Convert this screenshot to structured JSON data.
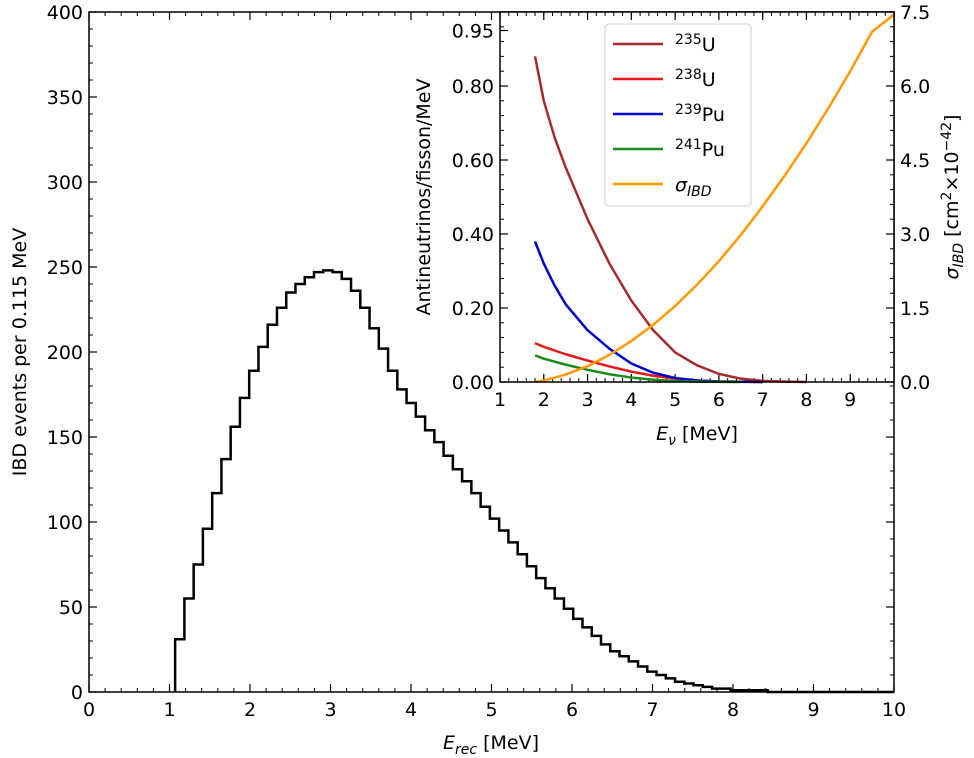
{
  "chart_data": [
    {
      "type": "line",
      "name": "main",
      "title": "",
      "xlabel": "E_rec [MeV]",
      "xlabel_parts": {
        "var": "E",
        "sub": "rec",
        "unit": " [MeV]"
      },
      "ylabel": "IBD events per 0.115 MeV",
      "xlim": [
        0,
        10
      ],
      "ylim": [
        0,
        400
      ],
      "xticks": [
        0,
        1,
        2,
        3,
        4,
        5,
        6,
        7,
        8,
        9,
        10
      ],
      "yticks": [
        0,
        50,
        100,
        150,
        200,
        250,
        300,
        350,
        400
      ],
      "bin_width": 0.115,
      "hist_start": 1.07,
      "hist_values": [
        31,
        55,
        75,
        96,
        117,
        137,
        156,
        173,
        189,
        203,
        216,
        226,
        235,
        240,
        244,
        247,
        248,
        247,
        243,
        236,
        226,
        214,
        202,
        189,
        178,
        170,
        162,
        154,
        147,
        139,
        131,
        124,
        117,
        109,
        102,
        95,
        88,
        81,
        74,
        67,
        61,
        55,
        49,
        43,
        38,
        33,
        28,
        24,
        21,
        18,
        15,
        12,
        10,
        8,
        6,
        5,
        4,
        3,
        2,
        2,
        1,
        1,
        1,
        1,
        0
      ]
    },
    {
      "type": "line",
      "name": "inset",
      "xlabel": "E_ν [MeV]",
      "xlabel_parts": {
        "var": "E",
        "sub": "ν",
        "unit": " [MeV]"
      },
      "ylabel": "Antineutrinos/fisson/MeV",
      "y2label": "σ_IBD [cm²×10⁻⁴²]",
      "xlim": [
        1,
        10
      ],
      "ylim": [
        0,
        1.0
      ],
      "y2lim": [
        0,
        7.5
      ],
      "xticks": [
        1,
        2,
        3,
        4,
        5,
        6,
        7,
        8,
        9
      ],
      "yticks": [
        0.0,
        0.2,
        0.4,
        0.6,
        0.8,
        0.95
      ],
      "ytick_labels": [
        "0.00",
        "0.20",
        "0.40",
        "0.60",
        "0.80",
        "0.95"
      ],
      "y2ticks": [
        0.0,
        1.5,
        3.0,
        4.5,
        6.0,
        7.5
      ],
      "y2tick_labels": [
        "0.0",
        "1.5",
        "3.0",
        "4.5",
        "6.0",
        "7.5"
      ],
      "legend_position": "top-center",
      "series": [
        {
          "name": "235U",
          "iso": "235",
          "el": "U",
          "color": "#a52a2a",
          "axis": "left",
          "x": [
            1.8,
            2.0,
            2.25,
            2.5,
            2.75,
            3.0,
            3.5,
            4.0,
            4.5,
            5.0,
            5.5,
            6.0,
            6.5,
            7.0,
            7.5,
            8.0
          ],
          "y": [
            0.88,
            0.76,
            0.66,
            0.58,
            0.51,
            0.44,
            0.32,
            0.22,
            0.14,
            0.08,
            0.045,
            0.022,
            0.009,
            0.003,
            0.001,
            0.0
          ]
        },
        {
          "name": "238U",
          "iso": "238",
          "el": "U",
          "color": "#e31a1c",
          "axis": "left",
          "x": [
            1.8,
            2.0,
            2.5,
            3.0,
            3.5,
            4.0,
            4.5,
            5.0,
            5.5,
            6.0,
            6.5,
            7.0
          ],
          "y": [
            0.105,
            0.095,
            0.075,
            0.058,
            0.042,
            0.028,
            0.017,
            0.009,
            0.004,
            0.0015,
            0.0005,
            0.0
          ]
        },
        {
          "name": "239Pu",
          "iso": "239",
          "el": "Pu",
          "color": "#0000cc",
          "axis": "left",
          "x": [
            1.8,
            2.0,
            2.25,
            2.5,
            3.0,
            3.5,
            4.0,
            4.5,
            5.0,
            5.5,
            6.0,
            6.5,
            7.0
          ],
          "y": [
            0.38,
            0.32,
            0.26,
            0.21,
            0.14,
            0.09,
            0.05,
            0.025,
            0.011,
            0.004,
            0.0015,
            0.0005,
            0.0
          ]
        },
        {
          "name": "241Pu",
          "iso": "241",
          "el": "Pu",
          "color": "#1a8a1a",
          "axis": "left",
          "x": [
            1.8,
            2.0,
            2.5,
            3.0,
            3.5,
            4.0,
            4.5,
            5.0,
            5.5,
            6.0,
            6.5
          ],
          "y": [
            0.072,
            0.063,
            0.047,
            0.033,
            0.021,
            0.012,
            0.006,
            0.0025,
            0.001,
            0.0003,
            0.0
          ]
        },
        {
          "name": "σ_IBD",
          "color": "#ff9900",
          "axis": "right",
          "x": [
            1.806,
            2.0,
            2.5,
            3.0,
            3.5,
            4.0,
            4.5,
            5.0,
            5.5,
            6.0,
            6.5,
            7.0,
            7.5,
            8.0,
            8.5,
            9.0,
            9.5,
            10.0
          ],
          "y": [
            0.0,
            0.03,
            0.15,
            0.32,
            0.55,
            0.83,
            1.16,
            1.54,
            1.97,
            2.45,
            2.98,
            3.56,
            4.18,
            4.84,
            5.55,
            6.3,
            7.1,
            7.45
          ]
        }
      ]
    }
  ]
}
